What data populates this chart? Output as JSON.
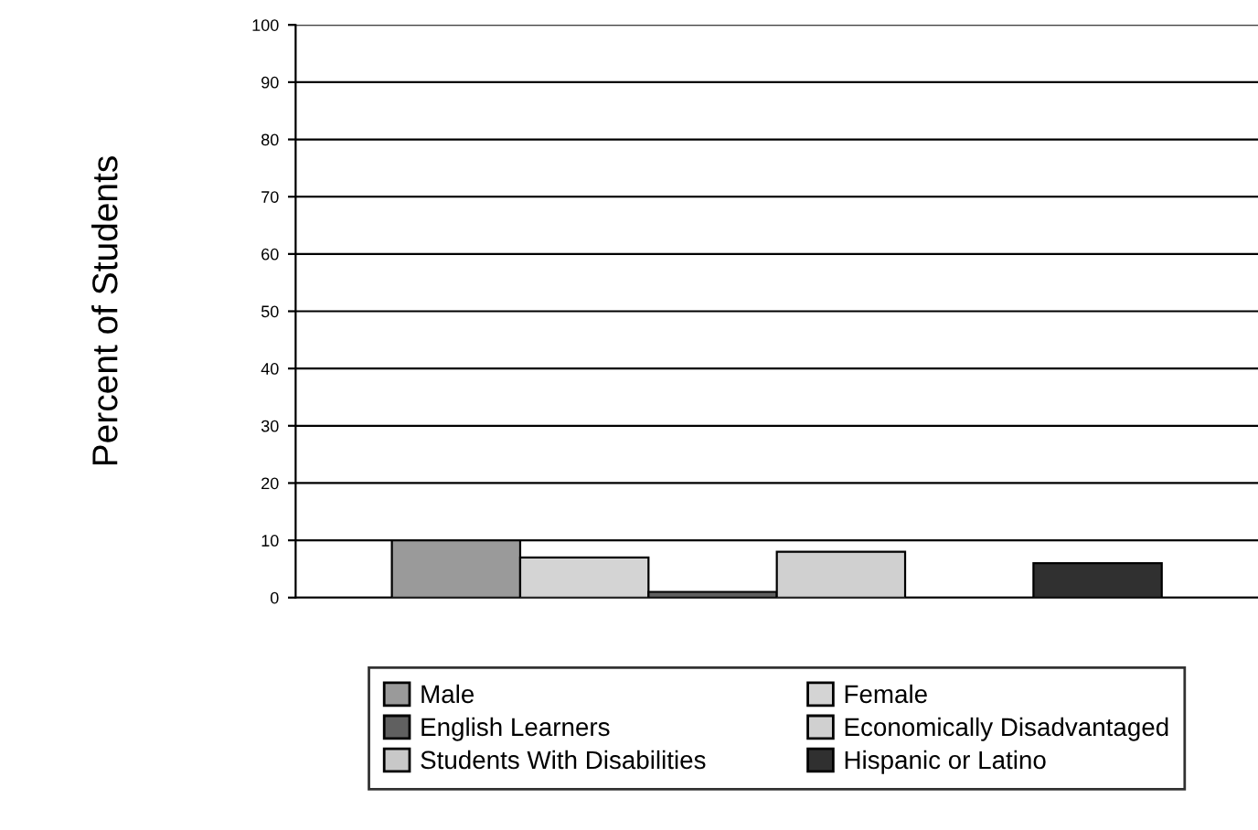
{
  "chart_data": {
    "type": "bar",
    "ylabel": "Percent of Students",
    "categories": [
      null
    ],
    "series": [
      {
        "name": "Male",
        "color": "#9a9a9a",
        "values": [
          10
        ]
      },
      {
        "name": "Female",
        "color": "#d4d4d4",
        "values": [
          7
        ]
      },
      {
        "name": "English Learners",
        "color": "#606060",
        "values": [
          1
        ]
      },
      {
        "name": "Economically Disadvantaged",
        "color": "#d0d0d0",
        "values": [
          8
        ]
      },
      {
        "name": "Students With Disabilities",
        "color": "#c8c8c8",
        "values": [
          null
        ]
      },
      {
        "name": "Hispanic or Latino",
        "color": "#303030",
        "values": [
          6
        ]
      }
    ],
    "ylim": [
      0,
      100
    ],
    "yticks": [
      0,
      10,
      20,
      30,
      40,
      50,
      60,
      70,
      80,
      90,
      100
    ],
    "grid": "y",
    "legend": "bottom"
  }
}
